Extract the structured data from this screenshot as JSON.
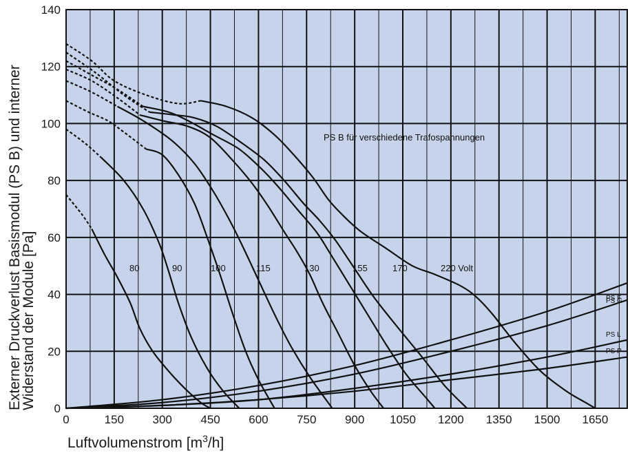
{
  "chart_data": {
    "type": "line",
    "xlabel": "Luftvolumenstrom [m3/h]",
    "ylabel_line1": "Externer Druckverlust Basismodul (PS B) und interner",
    "ylabel_line2": "Widerstand der Module [Pa]",
    "xlim": [
      0,
      1750
    ],
    "ylim": [
      0,
      140
    ],
    "x_ticks": [
      0,
      150,
      300,
      450,
      600,
      750,
      900,
      1050,
      1200,
      1350,
      1500,
      1650
    ],
    "y_ticks": [
      0,
      20,
      40,
      60,
      80,
      100,
      120,
      140
    ],
    "x_tick_labels": [
      "0",
      "150",
      "300",
      "450",
      "600",
      "750",
      "900",
      "1050",
      "1200",
      "1350",
      "1500",
      "1650"
    ],
    "y_tick_labels": [
      "0",
      "20",
      "40",
      "60",
      "80",
      "100",
      "120",
      "140"
    ],
    "x_grid_minor": [
      75,
      225,
      375,
      525,
      675,
      825,
      975,
      1125,
      1275,
      1425,
      1575,
      1725
    ],
    "grid": true,
    "background_color": "#c6d3ea",
    "line_color": "#111111",
    "annotation": "PS B für verschiedene Trafospannungen",
    "series": [
      {
        "name": "80",
        "dashed": [
          [
            0,
            75
          ],
          [
            50,
            68
          ],
          [
            80,
            63
          ]
        ],
        "solid": [
          [
            80,
            63
          ],
          [
            120,
            54
          ],
          [
            160,
            46
          ],
          [
            200,
            37
          ],
          [
            230,
            28
          ],
          [
            270,
            20
          ],
          [
            320,
            13
          ],
          [
            370,
            7
          ],
          [
            420,
            2
          ],
          [
            450,
            0
          ]
        ]
      },
      {
        "name": "90",
        "dashed": [
          [
            0,
            98
          ],
          [
            60,
            93
          ],
          [
            110,
            88
          ]
        ],
        "solid": [
          [
            110,
            88
          ],
          [
            180,
            80
          ],
          [
            240,
            70
          ],
          [
            290,
            58
          ],
          [
            320,
            48
          ],
          [
            350,
            37
          ],
          [
            390,
            25
          ],
          [
            440,
            14
          ],
          [
            490,
            6
          ],
          [
            540,
            0
          ]
        ]
      },
      {
        "name": "100",
        "dashed": [
          [
            0,
            108
          ],
          [
            70,
            104
          ],
          [
            130,
            101
          ],
          [
            180,
            97
          ],
          [
            250,
            91
          ]
        ],
        "solid": [
          [
            250,
            91
          ],
          [
            300,
            89
          ],
          [
            350,
            82
          ],
          [
            400,
            72
          ],
          [
            440,
            60
          ],
          [
            480,
            47
          ],
          [
            520,
            33
          ],
          [
            560,
            20
          ],
          [
            600,
            10
          ],
          [
            650,
            0
          ]
        ]
      },
      {
        "name": "115",
        "dashed": [
          [
            0,
            115
          ],
          [
            80,
            111
          ],
          [
            160,
            106
          ]
        ],
        "solid": [
          [
            160,
            106
          ],
          [
            240,
            101
          ],
          [
            330,
            94
          ],
          [
            400,
            86
          ],
          [
            460,
            76
          ],
          [
            510,
            66
          ],
          [
            550,
            57
          ],
          [
            600,
            45
          ],
          [
            650,
            33
          ],
          [
            700,
            22
          ],
          [
            760,
            11
          ],
          [
            830,
            0
          ]
        ]
      },
      {
        "name": "130",
        "dashed": [
          [
            0,
            119
          ],
          [
            80,
            115
          ],
          [
            160,
            109
          ],
          [
            230,
            103
          ]
        ],
        "solid": [
          [
            230,
            103
          ],
          [
            300,
            101
          ],
          [
            380,
            99
          ],
          [
            450,
            95
          ],
          [
            520,
            87
          ],
          [
            580,
            79
          ],
          [
            630,
            71
          ],
          [
            680,
            62
          ],
          [
            720,
            55
          ],
          [
            760,
            47
          ],
          [
            800,
            37
          ],
          [
            850,
            26
          ],
          [
            900,
            15
          ],
          [
            950,
            6
          ],
          [
            990,
            0
          ]
        ]
      },
      {
        "name": "155",
        "dashed": [
          [
            0,
            122
          ],
          [
            80,
            117
          ],
          [
            160,
            112
          ],
          [
            240,
            106
          ]
        ],
        "solid": [
          [
            240,
            106
          ],
          [
            320,
            104
          ],
          [
            380,
            101
          ],
          [
            460,
            96
          ],
          [
            540,
            91
          ],
          [
            610,
            84
          ],
          [
            660,
            78
          ],
          [
            720,
            70
          ],
          [
            780,
            62
          ],
          [
            820,
            55
          ],
          [
            880,
            44
          ],
          [
            940,
            33
          ],
          [
            1000,
            22
          ],
          [
            1060,
            12
          ],
          [
            1120,
            4
          ],
          [
            1150,
            0
          ]
        ]
      },
      {
        "name": "170",
        "dashed": [
          [
            0,
            125
          ],
          [
            90,
            118
          ],
          [
            180,
            110
          ],
          [
            260,
            104
          ]
        ],
        "solid": [
          [
            260,
            104
          ],
          [
            340,
            103
          ],
          [
            400,
            102
          ],
          [
            470,
            99
          ],
          [
            550,
            93
          ],
          [
            620,
            87
          ],
          [
            680,
            80
          ],
          [
            740,
            72
          ],
          [
            790,
            66
          ],
          [
            840,
            59
          ],
          [
            900,
            49
          ],
          [
            960,
            39
          ],
          [
            1030,
            29
          ],
          [
            1110,
            18
          ],
          [
            1180,
            8
          ],
          [
            1250,
            0
          ]
        ]
      },
      {
        "name": "220 Volt",
        "dashed": [
          [
            0,
            128
          ],
          [
            80,
            122
          ],
          [
            150,
            115
          ],
          [
            250,
            110
          ],
          [
            350,
            107
          ],
          [
            420,
            108
          ]
        ],
        "solid": [
          [
            420,
            108
          ],
          [
            500,
            106
          ],
          [
            580,
            102
          ],
          [
            650,
            96
          ],
          [
            710,
            89
          ],
          [
            770,
            81
          ],
          [
            820,
            73
          ],
          [
            870,
            67
          ],
          [
            920,
            62
          ],
          [
            1000,
            56
          ],
          [
            1080,
            50
          ],
          [
            1150,
            47
          ],
          [
            1230,
            43
          ],
          [
            1280,
            39
          ],
          [
            1330,
            33
          ],
          [
            1400,
            23
          ],
          [
            1480,
            13
          ],
          [
            1560,
            6
          ],
          [
            1620,
            2
          ],
          [
            1650,
            0
          ]
        ]
      },
      {
        "name": "PS F",
        "solid": [
          [
            0,
            0
          ],
          [
            300,
            3
          ],
          [
            600,
            8
          ],
          [
            900,
            15
          ],
          [
            1200,
            24
          ],
          [
            1500,
            34
          ],
          [
            1750,
            44
          ]
        ]
      },
      {
        "name": "PS G",
        "solid": [
          [
            0,
            0
          ],
          [
            300,
            2
          ],
          [
            600,
            6
          ],
          [
            900,
            12
          ],
          [
            1200,
            20
          ],
          [
            1500,
            29
          ],
          [
            1750,
            38
          ]
        ]
      },
      {
        "name": "PS L",
        "solid": [
          [
            0,
            0
          ],
          [
            300,
            1
          ],
          [
            600,
            3
          ],
          [
            900,
            7
          ],
          [
            1200,
            12
          ],
          [
            1500,
            18
          ],
          [
            1750,
            24
          ]
        ]
      },
      {
        "name": "PS P",
        "solid": [
          [
            0,
            0
          ],
          [
            300,
            1
          ],
          [
            600,
            3
          ],
          [
            900,
            6
          ],
          [
            1200,
            10
          ],
          [
            1500,
            14
          ],
          [
            1750,
            18
          ]
        ]
      }
    ]
  }
}
